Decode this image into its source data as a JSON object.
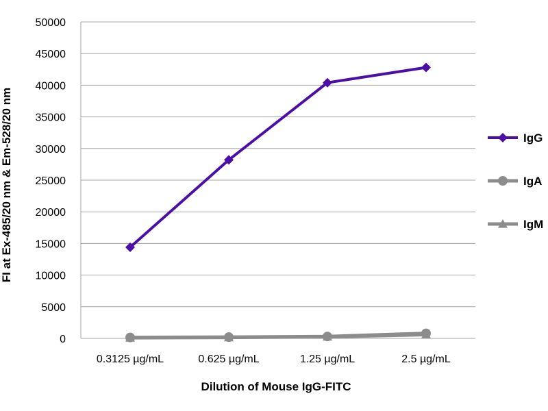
{
  "chart_data": {
    "type": "line",
    "title": "",
    "xlabel": "Dilution of Mouse IgG-FITC",
    "ylabel": "FI at Ex-485/20 nm & Em-528/20 nm",
    "categories": [
      "0.3125 µg/mL",
      "0.625 µg/mL",
      "1.25 µg/mL",
      "2.5 µg/mL"
    ],
    "ylim": [
      0,
      50000
    ],
    "yticks": [
      0,
      5000,
      10000,
      15000,
      20000,
      25000,
      30000,
      35000,
      40000,
      45000,
      50000
    ],
    "grid": true,
    "legend_position": "right",
    "series": [
      {
        "name": "IgG",
        "values": [
          14400,
          28200,
          40400,
          42800
        ],
        "color": "#4b0fa8",
        "marker": "diamond"
      },
      {
        "name": "IgA",
        "values": [
          150,
          200,
          300,
          800
        ],
        "color": "#8c8c8c",
        "marker": "circle"
      },
      {
        "name": "IgM",
        "values": [
          100,
          150,
          250,
          600
        ],
        "color": "#8c8c8c",
        "marker": "triangle"
      }
    ]
  }
}
